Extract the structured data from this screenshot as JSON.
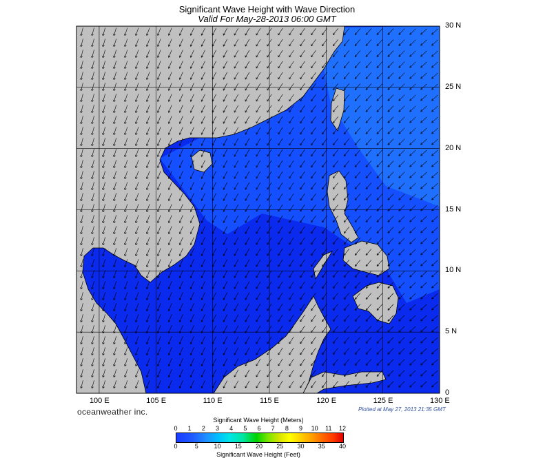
{
  "header": {
    "title": "Significant Wave Height with Wave Direction",
    "subtitle": "Valid For May-28-2013 06:00 GMT"
  },
  "map": {
    "lon_min": 98,
    "lon_max": 130,
    "lat_min": 0,
    "lat_max": 30,
    "lon_labels": [
      "100 E",
      "105 E",
      "110 E",
      "115 E",
      "120 E",
      "125 E",
      "130 E"
    ],
    "lat_labels": [
      "30 N",
      "25 N",
      "20 N",
      "15 N",
      "10 N",
      "5 N",
      "0"
    ],
    "colors": {
      "land": "#c0c0c0",
      "very_low": "#001a6e",
      "low": "#0a2aee",
      "mid": "#1450ff",
      "high": "#1f70ff",
      "border": "#000000"
    },
    "wave_direction_deg": 205
  },
  "footer": {
    "brand": "oceanweather inc.",
    "plotted": "Plotted at May 27, 2013 21:35 GMT"
  },
  "colorbar": {
    "title_top": "Significant Wave Height (Meters)",
    "title_bottom": "Significant Wave Height (Feet)",
    "meters_ticks": [
      "0",
      "1",
      "2",
      "3",
      "4",
      "5",
      "6",
      "7",
      "8",
      "9",
      "10",
      "11",
      "12"
    ],
    "feet_ticks": [
      "0",
      "5",
      "10",
      "15",
      "20",
      "25",
      "30",
      "35",
      "40"
    ],
    "meters_max": 12,
    "feet_max": 40
  }
}
